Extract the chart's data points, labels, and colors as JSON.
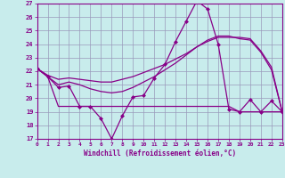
{
  "xlabel": "Windchill (Refroidissement éolien,°C)",
  "background_color": "#c8ecec",
  "grid_color": "#9999bb",
  "line_color": "#880088",
  "xlim": [
    0,
    23
  ],
  "ylim": [
    17,
    27
  ],
  "yticks": [
    17,
    18,
    19,
    20,
    21,
    22,
    23,
    24,
    25,
    26,
    27
  ],
  "xticks": [
    0,
    1,
    2,
    3,
    4,
    5,
    6,
    7,
    8,
    9,
    10,
    11,
    12,
    13,
    14,
    15,
    16,
    17,
    18,
    19,
    20,
    21,
    22,
    23
  ],
  "line1_x": [
    0,
    1,
    2,
    3,
    4,
    5,
    6,
    7,
    8,
    9,
    10,
    11,
    12,
    13,
    14,
    15,
    16,
    17,
    18,
    19,
    20,
    21,
    22,
    23
  ],
  "line1_y": [
    22.2,
    21.6,
    20.8,
    20.9,
    19.4,
    19.4,
    18.5,
    17.0,
    18.7,
    20.1,
    20.2,
    21.5,
    22.5,
    24.2,
    25.7,
    27.2,
    26.6,
    24.0,
    19.2,
    19.0,
    19.9,
    19.0,
    19.8,
    19.0
  ],
  "line2_x": [
    0,
    1,
    2,
    3,
    4,
    5,
    6,
    7,
    8,
    9,
    10,
    11,
    12,
    13,
    14,
    15,
    16,
    17,
    18,
    19,
    20,
    21,
    22,
    23
  ],
  "line2_y": [
    22.2,
    21.7,
    21.4,
    21.5,
    21.4,
    21.3,
    21.2,
    21.2,
    21.4,
    21.6,
    21.9,
    22.2,
    22.5,
    22.9,
    23.3,
    23.8,
    24.2,
    24.5,
    24.5,
    24.5,
    24.4,
    23.5,
    22.3,
    19.0
  ],
  "line3_x": [
    0,
    1,
    2,
    3,
    4,
    5,
    6,
    7,
    8,
    9,
    10,
    11,
    12,
    13,
    14,
    15,
    16,
    17,
    18,
    19,
    20,
    21,
    22,
    23
  ],
  "line3_y": [
    22.2,
    21.6,
    21.0,
    21.2,
    21.0,
    20.7,
    20.5,
    20.4,
    20.5,
    20.8,
    21.2,
    21.6,
    22.1,
    22.6,
    23.2,
    23.8,
    24.3,
    24.6,
    24.6,
    24.4,
    24.3,
    23.4,
    22.1,
    19.0
  ],
  "line4_x": [
    0,
    1,
    2,
    3,
    4,
    5,
    6,
    7,
    8,
    9,
    10,
    11,
    12,
    13,
    14,
    15,
    16,
    17,
    18,
    19,
    20,
    21,
    22,
    23
  ],
  "line4_y": [
    22.2,
    21.6,
    19.4,
    19.4,
    19.4,
    19.4,
    19.4,
    19.4,
    19.4,
    19.4,
    19.4,
    19.4,
    19.4,
    19.4,
    19.4,
    19.4,
    19.4,
    19.4,
    19.4,
    19.0,
    19.0,
    19.0,
    19.0,
    19.0
  ]
}
